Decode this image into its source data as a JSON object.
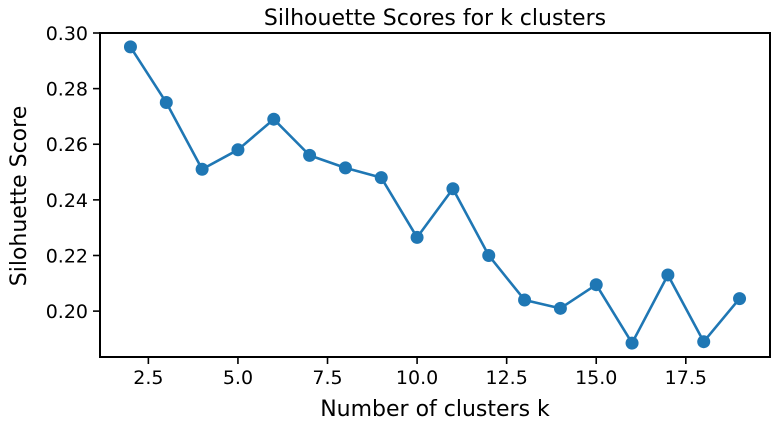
{
  "chart_data": {
    "type": "line",
    "title": "Silhouette Scores for k clusters",
    "xlabel": "Number of clusters k",
    "ylabel": "Silohuette Score",
    "xlim": [
      1.15,
      19.85
    ],
    "ylim": [
      0.1835,
      0.3
    ],
    "xticks": [
      2.5,
      5.0,
      7.5,
      10.0,
      12.5,
      15.0,
      17.5
    ],
    "xtick_labels": [
      "2.5",
      "5.0",
      "7.5",
      "10.0",
      "12.5",
      "15.0",
      "17.5"
    ],
    "yticks": [
      0.2,
      0.22,
      0.24,
      0.26,
      0.28,
      0.3
    ],
    "ytick_labels": [
      "0.20",
      "0.22",
      "0.24",
      "0.26",
      "0.28",
      "0.30"
    ],
    "grid": false,
    "color": "#1f77b4",
    "series": [
      {
        "x": [
          2,
          3,
          4,
          5,
          6,
          7,
          8,
          9,
          10,
          11,
          12,
          13,
          14,
          15,
          16,
          17,
          18,
          19
        ],
        "values": [
          0.295,
          0.275,
          0.251,
          0.258,
          0.269,
          0.256,
          0.2515,
          0.248,
          0.2265,
          0.244,
          0.22,
          0.204,
          0.201,
          0.2095,
          0.1885,
          0.213,
          0.189,
          0.2045
        ]
      }
    ]
  }
}
